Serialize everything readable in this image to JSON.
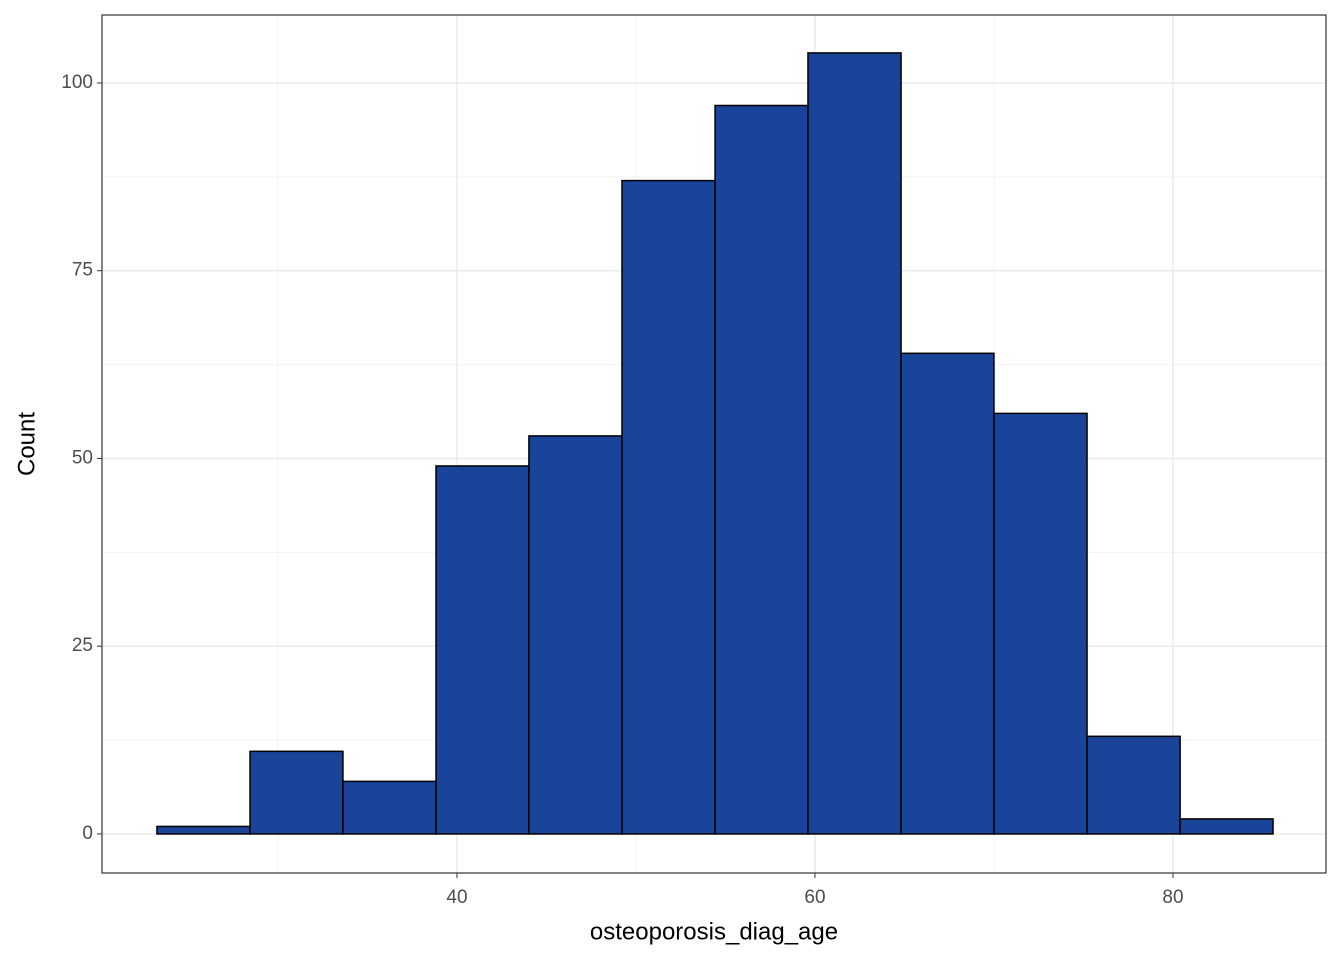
{
  "chart_data": {
    "type": "histogram",
    "x_label": "osteoporosis_diag_age",
    "y_label": "Count",
    "bins": [
      23.24,
      28.44,
      33.63,
      38.83,
      44.02,
      49.22,
      54.42,
      59.61,
      64.81,
      70.0,
      75.2,
      80.4,
      85.59
    ],
    "values": [
      1,
      11,
      7,
      49,
      53,
      87,
      97,
      104,
      64,
      56,
      13,
      2
    ],
    "color": "#1a4499",
    "edge_color": "#000000",
    "xlim": [
      20.17,
      88.55
    ],
    "ylim": [
      -5.2,
      109.05
    ],
    "xticks": [
      40,
      60,
      80
    ],
    "yticks": [
      0,
      25,
      50,
      75,
      100
    ],
    "grid": true
  }
}
